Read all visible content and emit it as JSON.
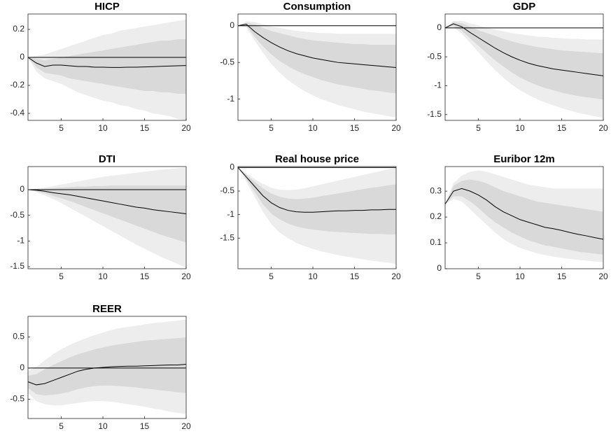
{
  "chart_data": [
    {
      "type": "line",
      "title": "HICP",
      "color": "#000000",
      "hline": 0,
      "x": [
        1,
        2,
        3,
        4,
        5,
        6,
        7,
        8,
        9,
        10,
        11,
        12,
        13,
        14,
        15,
        16,
        17,
        18,
        19,
        20
      ],
      "values": [
        0,
        -0.04,
        -0.065,
        -0.055,
        -0.055,
        -0.06,
        -0.065,
        -0.065,
        -0.07,
        -0.07,
        -0.072,
        -0.072,
        -0.07,
        -0.07,
        -0.068,
        -0.066,
        -0.064,
        -0.062,
        -0.06,
        -0.058
      ],
      "bands": [
        {
          "color": "#ededed",
          "upper": [
            0,
            0.01,
            0.02,
            0.04,
            0.06,
            0.08,
            0.1,
            0.12,
            0.14,
            0.16,
            0.17,
            0.19,
            0.2,
            0.21,
            0.22,
            0.23,
            0.24,
            0.25,
            0.26,
            0.27
          ],
          "lower": [
            0,
            -0.1,
            -0.15,
            -0.17,
            -0.19,
            -0.22,
            -0.25,
            -0.27,
            -0.29,
            -0.31,
            -0.32,
            -0.34,
            -0.35,
            -0.37,
            -0.38,
            -0.4,
            -0.41,
            -0.42,
            -0.44,
            -0.45
          ]
        },
        {
          "color": "#d9d9d9",
          "upper": [
            0,
            -0.01,
            -0.02,
            -0.01,
            0,
            0.01,
            0.02,
            0.03,
            0.04,
            0.05,
            0.06,
            0.07,
            0.08,
            0.09,
            0.1,
            0.11,
            0.12,
            0.12,
            0.13,
            0.13
          ],
          "lower": [
            0,
            -0.07,
            -0.11,
            -0.12,
            -0.13,
            -0.15,
            -0.16,
            -0.17,
            -0.18,
            -0.19,
            -0.2,
            -0.21,
            -0.22,
            -0.23,
            -0.24,
            -0.24,
            -0.25,
            -0.25,
            -0.26,
            -0.26
          ]
        }
      ],
      "xlim": [
        1,
        20
      ],
      "xticks": [
        5,
        10,
        15,
        20
      ],
      "ylim": [
        -0.45,
        0.31
      ],
      "yticks": [
        -0.4,
        -0.2,
        0,
        0.2
      ]
    },
    {
      "type": "line",
      "title": "Consumption",
      "color": "#000000",
      "hline": 0,
      "x": [
        1,
        2,
        3,
        4,
        5,
        6,
        7,
        8,
        9,
        10,
        11,
        12,
        13,
        14,
        15,
        16,
        17,
        18,
        19,
        20
      ],
      "values": [
        0,
        0.02,
        -0.08,
        -0.16,
        -0.23,
        -0.29,
        -0.34,
        -0.38,
        -0.41,
        -0.44,
        -0.46,
        -0.48,
        -0.5,
        -0.51,
        -0.52,
        -0.53,
        -0.54,
        -0.55,
        -0.56,
        -0.57
      ],
      "bands": [
        {
          "color": "#ededed",
          "upper": [
            0,
            0.06,
            0.05,
            0.02,
            -0.01,
            -0.03,
            -0.05,
            -0.07,
            -0.08,
            -0.09,
            -0.1,
            -0.1,
            -0.11,
            -0.11,
            -0.11,
            -0.11,
            -0.11,
            -0.11,
            -0.11,
            -0.11
          ],
          "lower": [
            0,
            -0.02,
            -0.2,
            -0.37,
            -0.52,
            -0.64,
            -0.74,
            -0.82,
            -0.89,
            -0.95,
            -1,
            -1.04,
            -1.08,
            -1.11,
            -1.14,
            -1.17,
            -1.19,
            -1.21,
            -1.23,
            -1.25
          ]
        },
        {
          "color": "#d9d9d9",
          "upper": [
            0,
            0.04,
            0.02,
            -0.03,
            -0.07,
            -0.1,
            -0.13,
            -0.16,
            -0.18,
            -0.2,
            -0.21,
            -0.22,
            -0.23,
            -0.24,
            -0.25,
            -0.25,
            -0.26,
            -0.26,
            -0.26,
            -0.26
          ],
          "lower": [
            0,
            0,
            -0.15,
            -0.28,
            -0.39,
            -0.48,
            -0.55,
            -0.61,
            -0.66,
            -0.7,
            -0.74,
            -0.77,
            -0.8,
            -0.82,
            -0.84,
            -0.86,
            -0.88,
            -0.89,
            -0.91,
            -0.92
          ]
        }
      ],
      "xlim": [
        1,
        20
      ],
      "xticks": [
        5,
        10,
        15,
        20
      ],
      "ylim": [
        -1.29,
        0.16
      ],
      "yticks": [
        -1,
        -0.5,
        0
      ]
    },
    {
      "type": "line",
      "title": "GDP",
      "color": "#000000",
      "hline": 0,
      "x": [
        1,
        2,
        3,
        4,
        5,
        6,
        7,
        8,
        9,
        10,
        11,
        12,
        13,
        14,
        15,
        16,
        17,
        18,
        19,
        20
      ],
      "values": [
        0,
        0.07,
        0.02,
        -0.08,
        -0.17,
        -0.26,
        -0.35,
        -0.43,
        -0.5,
        -0.56,
        -0.61,
        -0.65,
        -0.68,
        -0.71,
        -0.73,
        -0.75,
        -0.77,
        -0.79,
        -0.81,
        -0.83
      ],
      "bands": [
        {
          "color": "#ededed",
          "upper": [
            0,
            0.12,
            0.12,
            0.08,
            0.04,
            0,
            -0.03,
            -0.06,
            -0.09,
            -0.11,
            -0.13,
            -0.15,
            -0.16,
            -0.17,
            -0.18,
            -0.19,
            -0.19,
            -0.2,
            -0.2,
            -0.2
          ],
          "lower": [
            0,
            0.01,
            -0.1,
            -0.26,
            -0.42,
            -0.58,
            -0.73,
            -0.86,
            -0.98,
            -1.08,
            -1.16,
            -1.23,
            -1.29,
            -1.34,
            -1.39,
            -1.43,
            -1.47,
            -1.5,
            -1.53,
            -1.56
          ]
        },
        {
          "color": "#d9d9d9",
          "upper": [
            0,
            0.1,
            0.08,
            0.02,
            -0.04,
            -0.09,
            -0.14,
            -0.19,
            -0.23,
            -0.27,
            -0.3,
            -0.33,
            -0.35,
            -0.37,
            -0.39,
            -0.4,
            -0.41,
            -0.42,
            -0.43,
            -0.44
          ],
          "lower": [
            0,
            0.03,
            -0.05,
            -0.18,
            -0.31,
            -0.44,
            -0.56,
            -0.67,
            -0.77,
            -0.86,
            -0.93,
            -0.99,
            -1.04,
            -1.08,
            -1.12,
            -1.15,
            -1.18,
            -1.2,
            -1.22,
            -1.24
          ]
        }
      ],
      "xlim": [
        1,
        20
      ],
      "xticks": [
        5,
        10,
        15,
        20
      ],
      "ylim": [
        -1.6,
        0.24
      ],
      "yticks": [
        -1.5,
        -1,
        -0.5,
        0
      ]
    },
    {
      "type": "line",
      "title": "DTI",
      "color": "#000000",
      "hline": 0,
      "x": [
        1,
        2,
        3,
        4,
        5,
        6,
        7,
        8,
        9,
        10,
        11,
        12,
        13,
        14,
        15,
        16,
        17,
        18,
        19,
        20
      ],
      "values": [
        0,
        -0.01,
        -0.03,
        -0.06,
        -0.08,
        -0.1,
        -0.13,
        -0.16,
        -0.19,
        -0.22,
        -0.25,
        -0.28,
        -0.31,
        -0.34,
        -0.36,
        -0.39,
        -0.41,
        -0.43,
        -0.45,
        -0.47
      ],
      "bands": [
        {
          "color": "#ededed",
          "upper": [
            0,
            0.02,
            0.04,
            0.07,
            0.1,
            0.13,
            0.16,
            0.19,
            0.22,
            0.25,
            0.27,
            0.29,
            0.31,
            0.33,
            0.35,
            0.37,
            0.39,
            0.4,
            0.42,
            0.43
          ],
          "lower": [
            0,
            -0.05,
            -0.11,
            -0.18,
            -0.26,
            -0.35,
            -0.44,
            -0.53,
            -0.62,
            -0.71,
            -0.8,
            -0.89,
            -0.98,
            -1.07,
            -1.15,
            -1.23,
            -1.31,
            -1.38,
            -1.45,
            -1.52
          ]
        },
        {
          "color": "#d9d9d9",
          "upper": [
            0,
            0.01,
            0.02,
            0.03,
            0.04,
            0.05,
            0.06,
            0.06,
            0.07,
            0.07,
            0.08,
            0.08,
            0.08,
            0.08,
            0.08,
            0.08,
            0.08,
            0.08,
            0.08,
            0.08
          ],
          "lower": [
            0,
            -0.03,
            -0.07,
            -0.12,
            -0.17,
            -0.22,
            -0.28,
            -0.34,
            -0.4,
            -0.46,
            -0.52,
            -0.58,
            -0.64,
            -0.7,
            -0.76,
            -0.82,
            -0.88,
            -0.93,
            -0.98,
            -1.03
          ]
        }
      ],
      "xlim": [
        1,
        20
      ],
      "xticks": [
        5,
        10,
        15,
        20
      ],
      "ylim": [
        -1.54,
        0.45
      ],
      "yticks": [
        -1.5,
        -1,
        -0.5,
        0
      ]
    },
    {
      "type": "line",
      "title": "Real house price",
      "color": "#000000",
      "hline": 0,
      "x": [
        1,
        2,
        3,
        4,
        5,
        6,
        7,
        8,
        9,
        10,
        11,
        12,
        13,
        14,
        15,
        16,
        17,
        18,
        19,
        20
      ],
      "values": [
        0,
        -0.2,
        -0.4,
        -0.6,
        -0.75,
        -0.85,
        -0.91,
        -0.94,
        -0.95,
        -0.95,
        -0.94,
        -0.93,
        -0.92,
        -0.92,
        -0.91,
        -0.91,
        -0.9,
        -0.9,
        -0.89,
        -0.89
      ],
      "bands": [
        {
          "color": "#ededed",
          "upper": [
            0,
            -0.12,
            -0.24,
            -0.35,
            -0.43,
            -0.47,
            -0.48,
            -0.47,
            -0.44,
            -0.4,
            -0.36,
            -0.32,
            -0.28,
            -0.24,
            -0.2,
            -0.16,
            -0.12,
            -0.08,
            -0.04,
            0
          ],
          "lower": [
            0,
            -0.3,
            -0.62,
            -0.94,
            -1.2,
            -1.38,
            -1.5,
            -1.6,
            -1.67,
            -1.73,
            -1.78,
            -1.82,
            -1.86,
            -1.89,
            -1.92,
            -1.95,
            -1.98,
            -2,
            -2.02,
            -2.05
          ]
        },
        {
          "color": "#d9d9d9",
          "upper": [
            0,
            -0.15,
            -0.3,
            -0.44,
            -0.55,
            -0.62,
            -0.66,
            -0.67,
            -0.66,
            -0.64,
            -0.61,
            -0.58,
            -0.55,
            -0.52,
            -0.49,
            -0.46,
            -0.43,
            -0.41,
            -0.38,
            -0.36
          ],
          "lower": [
            0,
            -0.25,
            -0.52,
            -0.78,
            -0.98,
            -1.1,
            -1.19,
            -1.25,
            -1.29,
            -1.32,
            -1.34,
            -1.36,
            -1.37,
            -1.38,
            -1.39,
            -1.4,
            -1.41,
            -1.41,
            -1.42,
            -1.42
          ]
        }
      ],
      "xlim": [
        1,
        20
      ],
      "xticks": [
        5,
        10,
        15,
        20
      ],
      "ylim": [
        -2.15,
        0.02
      ],
      "yticks": [
        -1.5,
        -1,
        -0.5,
        0
      ]
    },
    {
      "type": "line",
      "title": "Euribor 12m",
      "color": "#000000",
      "x": [
        1,
        2,
        3,
        4,
        5,
        6,
        7,
        8,
        9,
        10,
        11,
        12,
        13,
        14,
        15,
        16,
        17,
        18,
        19,
        20
      ],
      "values": [
        0.25,
        0.3,
        0.31,
        0.3,
        0.285,
        0.265,
        0.24,
        0.22,
        0.205,
        0.19,
        0.18,
        0.17,
        0.16,
        0.155,
        0.148,
        0.14,
        0.133,
        0.127,
        0.12,
        0.114
      ],
      "bands": [
        {
          "color": "#ededed",
          "upper": [
            0.25,
            0.33,
            0.36,
            0.375,
            0.38,
            0.375,
            0.365,
            0.355,
            0.345,
            0.335,
            0.325,
            0.32,
            0.315,
            0.31,
            0.31,
            0.31,
            0.31,
            0.31,
            0.31,
            0.31
          ],
          "lower": [
            0.25,
            0.27,
            0.26,
            0.23,
            0.2,
            0.17,
            0.14,
            0.115,
            0.095,
            0.08,
            0.07,
            0.06,
            0.053,
            0.047,
            0.042,
            0.038,
            0.034,
            0.031,
            0.028,
            0.025
          ]
        },
        {
          "color": "#d9d9d9",
          "upper": [
            0.25,
            0.32,
            0.34,
            0.345,
            0.34,
            0.33,
            0.315,
            0.3,
            0.29,
            0.28,
            0.27,
            0.26,
            0.255,
            0.25,
            0.245,
            0.24,
            0.235,
            0.23,
            0.225,
            0.22
          ],
          "lower": [
            0.25,
            0.28,
            0.28,
            0.26,
            0.235,
            0.205,
            0.18,
            0.16,
            0.14,
            0.125,
            0.11,
            0.1,
            0.09,
            0.085,
            0.078,
            0.072,
            0.066,
            0.062,
            0.058,
            0.055
          ]
        }
      ],
      "xlim": [
        1,
        20
      ],
      "xticks": [
        5,
        10,
        15,
        20
      ],
      "ylim": [
        0,
        0.395
      ],
      "yticks": [
        0,
        0.1,
        0.2,
        0.3
      ]
    },
    {
      "type": "line",
      "title": "REER",
      "color": "#000000",
      "hline": 0,
      "x": [
        1,
        2,
        3,
        4,
        5,
        6,
        7,
        8,
        9,
        10,
        11,
        12,
        13,
        14,
        15,
        16,
        17,
        18,
        19,
        20
      ],
      "values": [
        -0.22,
        -0.27,
        -0.25,
        -0.2,
        -0.15,
        -0.1,
        -0.05,
        -0.02,
        0,
        0.01,
        0.02,
        0.025,
        0.03,
        0.03,
        0.035,
        0.04,
        0.045,
        0.05,
        0.05,
        0.06
      ],
      "bands": [
        {
          "color": "#ededed",
          "upper": [
            -0.05,
            0.02,
            0.12,
            0.22,
            0.3,
            0.37,
            0.43,
            0.48,
            0.53,
            0.57,
            0.61,
            0.64,
            0.66,
            0.68,
            0.7,
            0.72,
            0.73,
            0.75,
            0.76,
            0.78
          ],
          "lower": [
            -0.4,
            -0.53,
            -0.58,
            -0.6,
            -0.6,
            -0.58,
            -0.56,
            -0.54,
            -0.53,
            -0.53,
            -0.54,
            -0.56,
            -0.58,
            -0.6,
            -0.62,
            -0.65,
            -0.67,
            -0.7,
            -0.72,
            -0.74
          ]
        },
        {
          "color": "#d9d9d9",
          "upper": [
            -0.12,
            -0.1,
            -0.02,
            0.05,
            0.11,
            0.17,
            0.22,
            0.26,
            0.3,
            0.33,
            0.36,
            0.38,
            0.4,
            0.42,
            0.44,
            0.45,
            0.46,
            0.47,
            0.48,
            0.49
          ],
          "lower": [
            -0.32,
            -0.42,
            -0.44,
            -0.43,
            -0.41,
            -0.38,
            -0.34,
            -0.31,
            -0.29,
            -0.28,
            -0.28,
            -0.29,
            -0.3,
            -0.31,
            -0.33,
            -0.34,
            -0.36,
            -0.37,
            -0.39,
            -0.4
          ]
        }
      ],
      "xlim": [
        1,
        20
      ],
      "xticks": [
        5,
        10,
        15,
        20
      ],
      "ylim": [
        -0.81,
        0.83
      ],
      "yticks": [
        -0.5,
        0,
        0.5
      ]
    }
  ]
}
